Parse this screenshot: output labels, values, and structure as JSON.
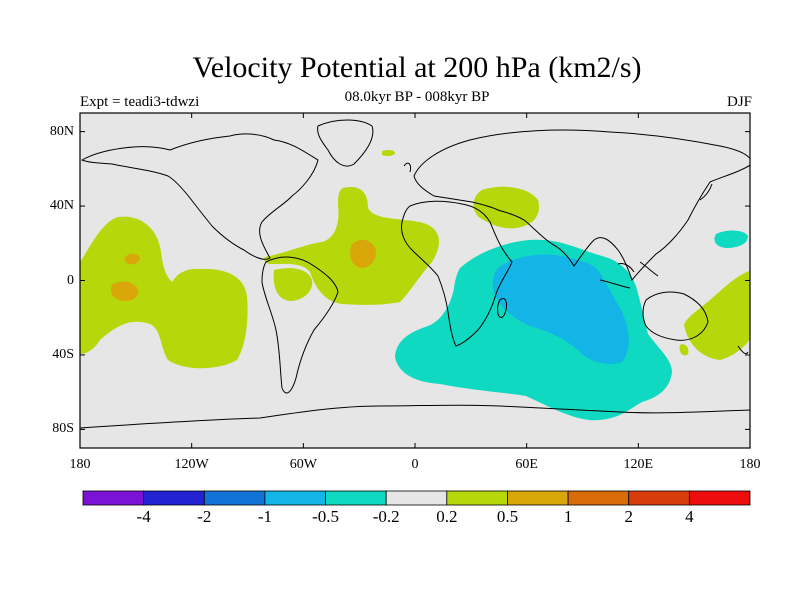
{
  "title": "Velocity Potential at 200 hPa (km2/s)",
  "subtitle": "08.0kyr BP - 008kyr BP",
  "experiment_label": "Expt = teadi3-tdwzi",
  "season_label": "DJF",
  "map": {
    "type": "filled-contour-map",
    "projection": "cylindrical-equidistant",
    "longitude_range": [
      -180,
      180
    ],
    "latitude_range": [
      -90,
      90
    ],
    "x_ticks": [
      {
        "lon": -180,
        "label": "180"
      },
      {
        "lon": -120,
        "label": "120W"
      },
      {
        "lon": -60,
        "label": "60W"
      },
      {
        "lon": 0,
        "label": "0"
      },
      {
        "lon": 60,
        "label": "60E"
      },
      {
        "lon": 120,
        "label": "120E"
      },
      {
        "lon": 180,
        "label": "180"
      }
    ],
    "y_ticks": [
      {
        "lat": 80,
        "label": "80N"
      },
      {
        "lat": 40,
        "label": "40N"
      },
      {
        "lat": 0,
        "label": "0"
      },
      {
        "lat": -40,
        "label": "40S"
      },
      {
        "lat": -80,
        "label": "80S"
      }
    ],
    "background_color": "#e6e6e6",
    "coastline_color": "#000000"
  },
  "colorbar": {
    "bins": [
      {
        "range": "< -4",
        "color": "#7b13d6"
      },
      {
        "range": "-4 to -2",
        "color": "#2323d4"
      },
      {
        "range": "-2 to -1",
        "color": "#1173d6"
      },
      {
        "range": "-1 to -0.5",
        "color": "#13b4e6"
      },
      {
        "range": "-0.5 to -0.2",
        "color": "#10d9c1"
      },
      {
        "range": "-0.2 to 0.2",
        "color": "#e6e6e6"
      },
      {
        "range": "0.2 to 0.5",
        "color": "#b6d80a"
      },
      {
        "range": "0.5 to 1",
        "color": "#d9a709"
      },
      {
        "range": "1 to 2",
        "color": "#d96b09"
      },
      {
        "range": "2 to 4",
        "color": "#d93c0b"
      },
      {
        "range": "> 4",
        "color": "#ee0d0d"
      }
    ],
    "labels": [
      "-4",
      "-2",
      "-1",
      "-0.5",
      "-0.2",
      "0.2",
      "0.5",
      "1",
      "2",
      "4"
    ]
  }
}
